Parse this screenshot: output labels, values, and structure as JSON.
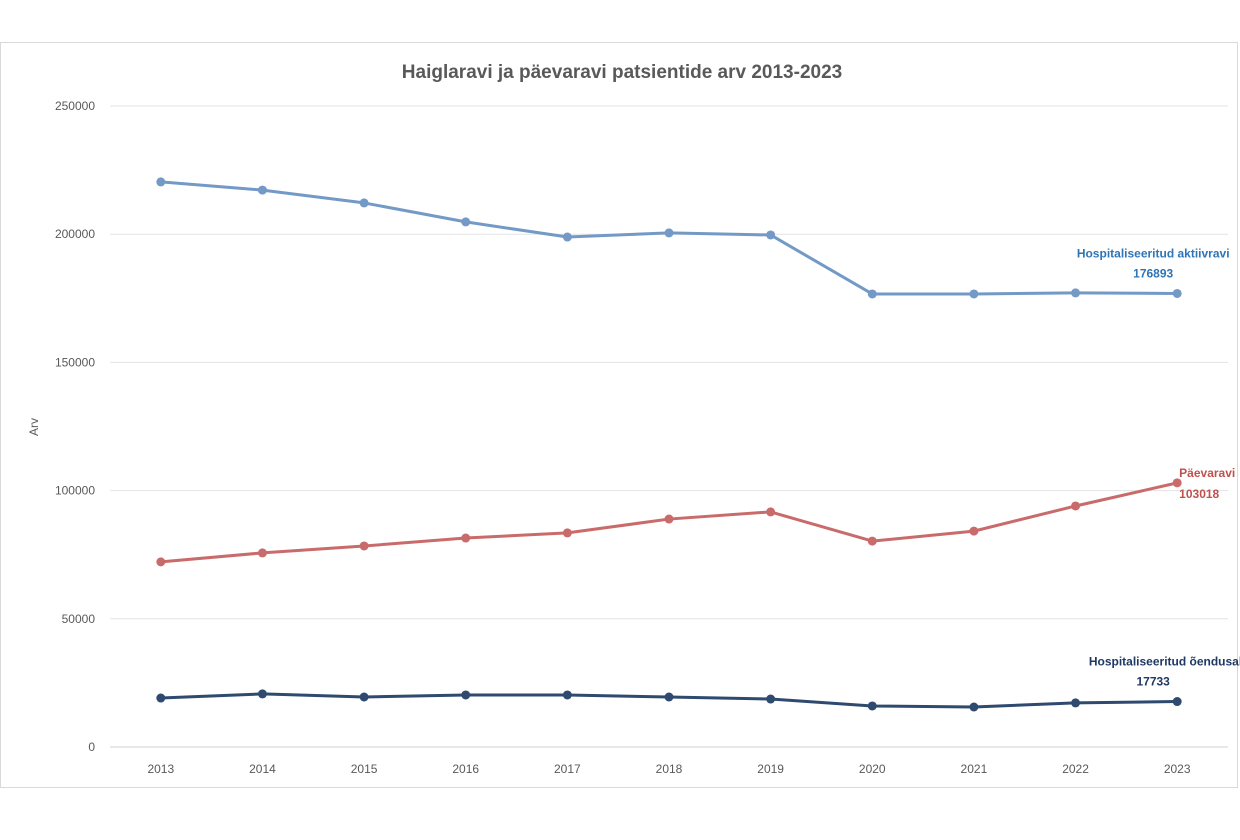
{
  "chart_data": {
    "type": "line",
    "title": "Haiglaravi ja päevaravi patsientide arv 2013-2023",
    "xlabel": "",
    "ylabel": "Arv",
    "ylim": [
      0,
      250000
    ],
    "yticks": [
      0,
      50000,
      100000,
      150000,
      200000,
      250000
    ],
    "ytick_labels": [
      "0",
      "50000",
      "100000",
      "150000",
      "200000",
      "250000"
    ],
    "grid": true,
    "legend": "none (end-of-line labels)",
    "categories": [
      "2013",
      "2014",
      "2015",
      "2016",
      "2017",
      "2018",
      "2019",
      "2020",
      "2021",
      "2022",
      "2023"
    ],
    "series": [
      {
        "name": "Hospitaliseeritud aktiivravi",
        "color": "#7399C6",
        "label_color": "#2E75B6",
        "end_label": "176893",
        "values": [
          220400,
          217200,
          212200,
          204800,
          198900,
          200500,
          199700,
          176700,
          176700,
          177100,
          176893
        ]
      },
      {
        "name": "Päevaravi",
        "color": "#C96B6B",
        "label_color": "#C0504D",
        "end_label": "103018",
        "values": [
          72200,
          75700,
          78400,
          81500,
          83500,
          88900,
          91700,
          80300,
          84200,
          94000,
          103018
        ]
      },
      {
        "name": "Hospitaliseeritud õendusabi",
        "color": "#2E4A6E",
        "label_color": "#1F3864",
        "end_label": "17733",
        "values": [
          19100,
          20700,
          19500,
          20300,
          20300,
          19500,
          18700,
          16000,
          15600,
          17200,
          17733
        ]
      }
    ]
  }
}
